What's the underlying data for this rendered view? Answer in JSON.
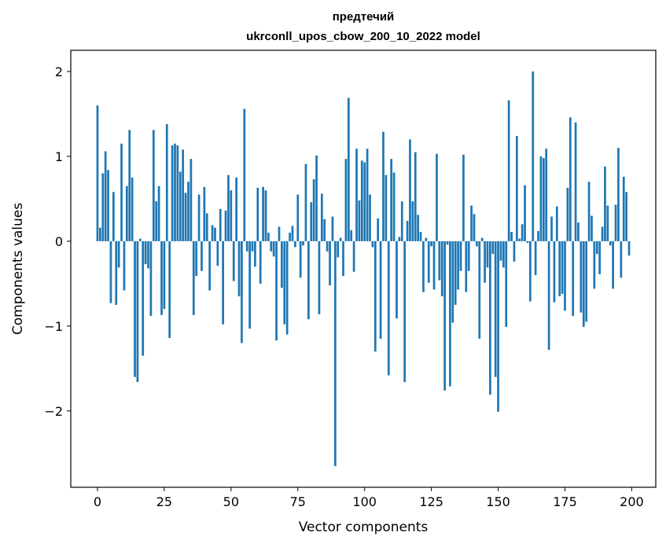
{
  "chart_data": {
    "type": "bar",
    "title": "предтечий",
    "subtitle": "ukrconll_upos_cbow_200_10_2022 model",
    "xlabel": "Vector components",
    "ylabel": "Components values",
    "xlim": [
      -10,
      209
    ],
    "ylim": [
      -2.9,
      2.25
    ],
    "grid": false,
    "bar_color": "#1f77b4",
    "x_ticks": [
      {
        "value": 0,
        "label": "0"
      },
      {
        "value": 25,
        "label": "25"
      },
      {
        "value": 50,
        "label": "50"
      },
      {
        "value": 75,
        "label": "75"
      },
      {
        "value": 100,
        "label": "100"
      },
      {
        "value": 125,
        "label": "125"
      },
      {
        "value": 150,
        "label": "150"
      },
      {
        "value": 175,
        "label": "175"
      },
      {
        "value": 200,
        "label": "200"
      }
    ],
    "y_ticks": [
      {
        "value": 2,
        "label": "2"
      },
      {
        "value": 1,
        "label": "1"
      },
      {
        "value": 0,
        "label": "0"
      },
      {
        "value": -1,
        "label": "−1"
      },
      {
        "value": -2,
        "label": "−2"
      }
    ],
    "values": [
      1.6,
      0.16,
      0.8,
      1.06,
      0.84,
      -0.73,
      0.58,
      -0.75,
      -0.31,
      1.15,
      -0.58,
      0.65,
      1.31,
      0.75,
      -1.6,
      -1.66,
      0.03,
      -1.35,
      -0.27,
      -0.32,
      -0.88,
      1.31,
      0.47,
      0.65,
      -0.87,
      -0.8,
      1.38,
      -1.14,
      1.13,
      1.15,
      1.13,
      0.82,
      1.08,
      0.57,
      0.7,
      0.97,
      -0.87,
      -0.41,
      0.55,
      -0.35,
      0.64,
      0.33,
      -0.58,
      0.19,
      0.16,
      -0.29,
      0.38,
      -0.98,
      0.36,
      0.78,
      0.6,
      -0.47,
      0.75,
      -0.65,
      -1.2,
      1.56,
      -0.12,
      -1.03,
      -0.12,
      -0.3,
      0.63,
      -0.5,
      0.64,
      0.6,
      0.1,
      -0.12,
      -0.18,
      -1.17,
      0.17,
      -0.55,
      -0.98,
      -1.1,
      0.1,
      0.18,
      -0.07,
      0.55,
      -0.43,
      -0.05,
      0.91,
      -0.92,
      0.46,
      0.73,
      1.01,
      -0.86,
      0.56,
      0.26,
      -0.12,
      -0.52,
      0.29,
      -2.65,
      -0.19,
      0.04,
      -0.41,
      0.97,
      1.69,
      0.13,
      -0.36,
      1.09,
      0.48,
      0.95,
      0.93,
      1.09,
      0.55,
      -0.07,
      -1.3,
      0.27,
      -1.15,
      1.29,
      0.78,
      -1.58,
      0.97,
      0.81,
      -0.91,
      0.05,
      0.47,
      -1.66,
      0.24,
      1.2,
      0.47,
      1.05,
      0.31,
      0.11,
      -0.6,
      0.04,
      -0.49,
      -0.06,
      -0.57,
      1.03,
      -0.46,
      -0.65,
      -1.76,
      -0.04,
      -1.71,
      -0.96,
      -0.75,
      -0.57,
      -0.35,
      1.02,
      -0.6,
      -0.35,
      0.42,
      0.32,
      -0.06,
      -1.15,
      0.04,
      -0.49,
      -0.31,
      -1.81,
      -0.15,
      -1.6,
      -2.01,
      -0.23,
      -0.31,
      -1.01,
      1.66,
      0.11,
      -0.24,
      1.24,
      0.03,
      0.2,
      0.66,
      -0.02,
      -0.71,
      2.0,
      -0.4,
      0.12,
      1.0,
      0.98,
      1.09,
      -1.28,
      0.29,
      -0.72,
      0.41,
      -0.65,
      -0.62,
      -0.82,
      0.63,
      1.46,
      -0.88,
      1.4,
      0.22,
      -0.84,
      -1.01,
      -0.95,
      0.7,
      0.3,
      -0.56,
      -0.15,
      -0.39,
      0.17,
      0.88,
      0.42,
      -0.05,
      -0.56,
      0.43,
      1.1,
      -0.43,
      0.76,
      0.58,
      -0.17
    ]
  }
}
